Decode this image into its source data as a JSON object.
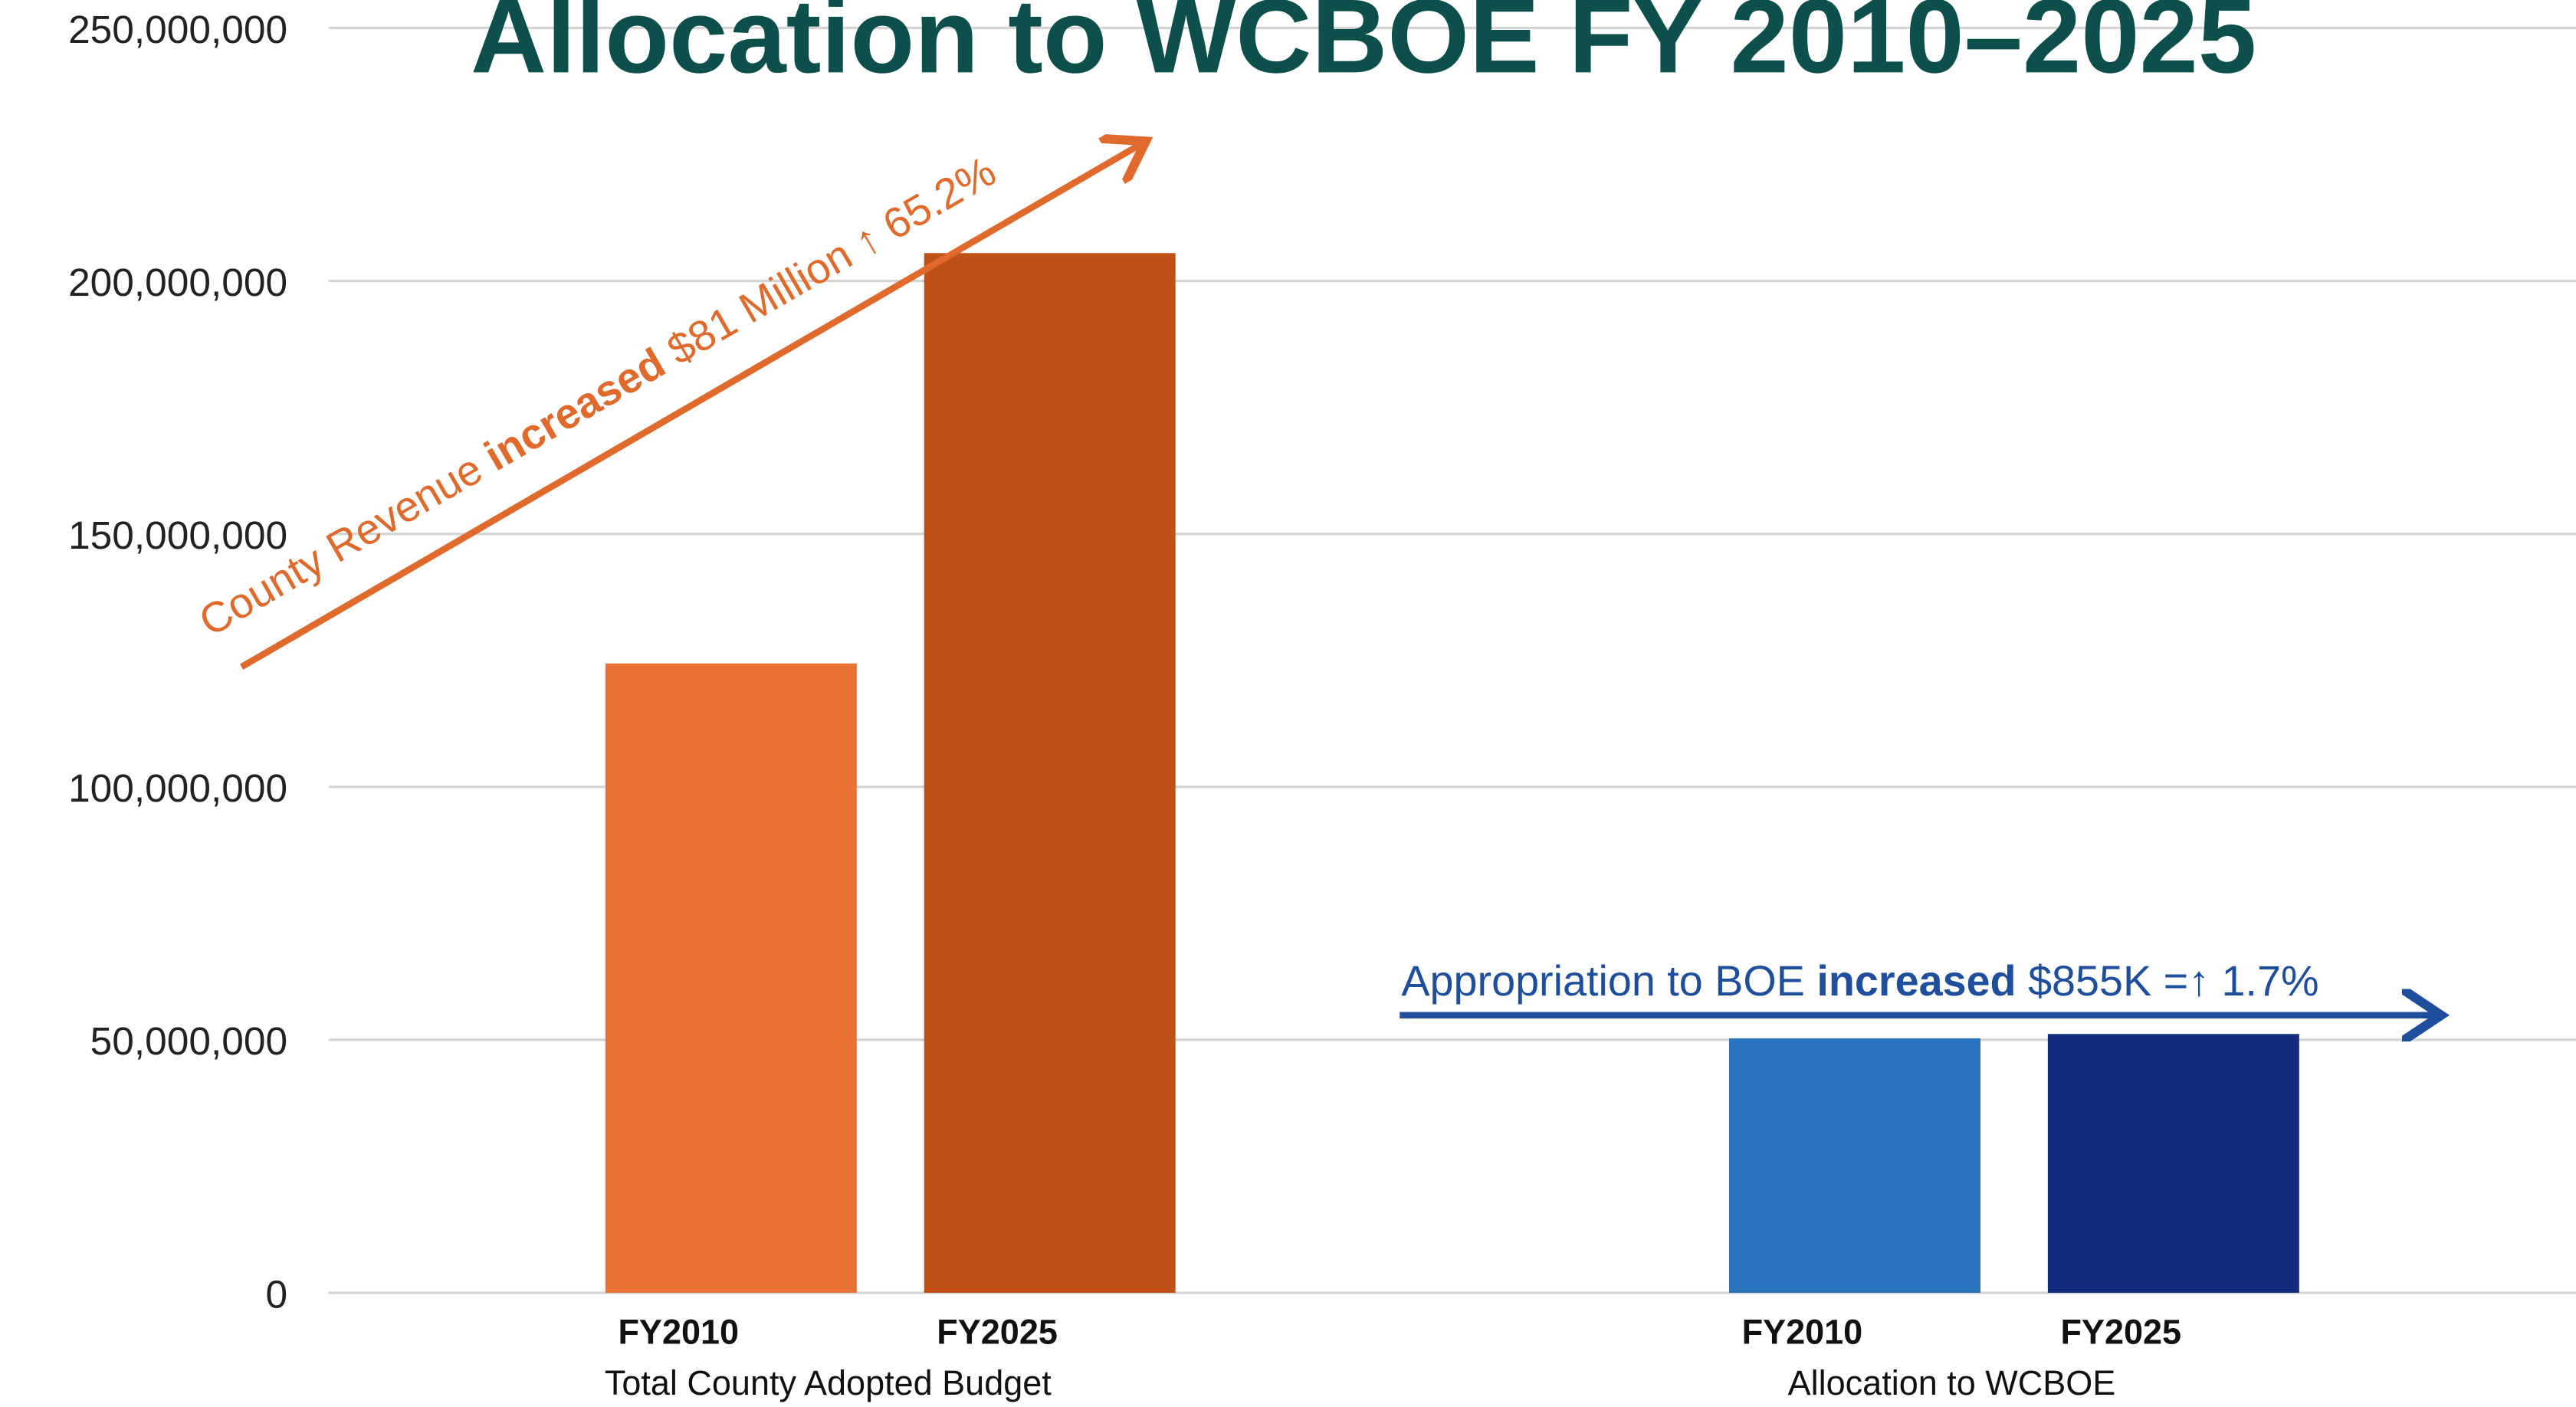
{
  "chart_data": {
    "type": "bar",
    "title": "Allocation to WCBOE FY 2010–2025",
    "categories": [
      "Total County Adopted Budget",
      "Allocation to WCBOE"
    ],
    "series": [
      {
        "name": "FY2010",
        "colors": [
          "#e87234",
          "#2a73be"
        ],
        "values": [
          124400000,
          50300000
        ]
      },
      {
        "name": "FY2025",
        "colors": [
          "#bf5016",
          "#132c7e"
        ],
        "values": [
          205500000,
          51155000
        ]
      }
    ],
    "ylim": [
      0,
      250000000
    ],
    "yticks": [
      0,
      {
        "value": 50000000,
        "label": "50,000,000"
      },
      {
        "value": 100000000,
        "label": "100,000,000"
      },
      {
        "value": 150000000,
        "label": "150,000,000"
      },
      {
        "value": 200000000,
        "label": "200,000,000"
      },
      {
        "value": 250000000,
        "label": "250,000,000"
      }
    ],
    "grid": true,
    "annotations": [
      {
        "parts": [
          "County Revenue ",
          "increased",
          " $81 Million ↑ 65.2%"
        ],
        "color": "#e06a2c"
      },
      {
        "parts": [
          "Appropriation to BOE ",
          "increased",
          " $855K =↑ 1.7%"
        ],
        "color": "#1f4e9c"
      }
    ]
  }
}
